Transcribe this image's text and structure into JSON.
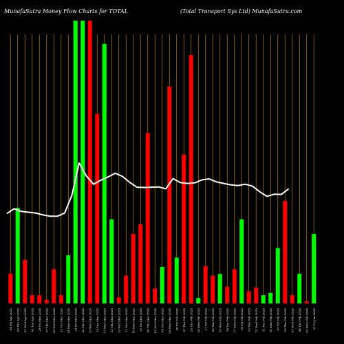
{
  "header": {
    "left_title": "MunafaSutra  Money Flow  Charts for TOTAL",
    "right_title": "(Total Transport Sys Ltd) MunafaSutra.com"
  },
  "colors": {
    "background": "#000000",
    "gridline": "#b8860b",
    "up": "#00ff00",
    "down": "#ff0000",
    "line": "#ffffff",
    "text": "#ffffff"
  },
  "chart_data": {
    "type": "bar",
    "title": "MunafaSutra  Money Flow  Charts for TOTAL",
    "subtitle": "(Total Transport Sys Ltd) MunafaSutra.com",
    "categories": [
      "04 Fri Apr 2025",
      "03 Thu Apr 2025",
      "02 Wed Apr 2025",
      "01 Tue Apr 2025",
      "28 Fri Mar 2025",
      "27 Thu Mar 2025",
      "26 Wed Mar 2025",
      "25 Tue Mar 2025",
      "24 Mon Mar 2025",
      "21 Fri Mar 2025",
      "20 Thu Mar 2025",
      "19 Wed Mar 2025",
      "18 Tue Mar 2025",
      "17 Mon Mar 2025",
      "13 Thu Mar 2025",
      "12 Wed Mar 2025",
      "11 Tue Mar 2025",
      "10 Mon Mar 2025",
      "07 Fri Mar 2025",
      "06 Thu Mar 2025",
      "05 Wed Mar 2025",
      "04 Tue Mar 2025",
      "03 Mon Mar 2025",
      "28 Fri Feb 2025",
      "27 Thu Feb 2025",
      "25 Tue Feb 2025",
      "24 Mon Feb 2025",
      "21 Fri Feb 2025",
      "20 Thu Feb 2025",
      "19 Wed Feb 2025",
      "18 Tue Feb 2025",
      "17 Mon Feb 2025",
      "14 Fri Feb 2025",
      "13 Thu Feb 2025",
      "12 Wed Feb 2025",
      "11 Tue Feb 2025",
      "10 Mon Feb 2025",
      "07 Fri Feb 2025",
      "06 Thu Feb 2025",
      "05 Wed Feb 2025",
      "04 Tue Feb 2025",
      "03 Mon Feb 2025",
      "31 Fri Jan 2025"
    ],
    "tick_labels": [
      "04 Fri Apr 2025",
      "03 Thu Apr 2025",
      "02 Wed Apr 2025",
      "01 Tue Apr 2025",
      "28 Fri Mar 2025",
      "27 Thu Mar 2025",
      "26 Wed Mar 2025",
      "25 Tue Mar 2025",
      "24 Mon Mar 2025",
      "21 Fri Mar 2025",
      "20 Thu Mar 2025",
      "19 Wed Mar 2025",
      "18 Tue Mar 2025",
      "17 Mon Mar 2025",
      "13 Thu Mar 2025",
      "12 Wed Mar 2025",
      "11 Tue Mar 2025",
      "10 Mon Mar 2025",
      "07 Fri Mar 2025",
      "06 Thu Mar 2025",
      "05 Wed Mar 2025",
      "04 Tue Mar 2025",
      "03 Mon Mar 2025",
      "28 Fri Feb 2025",
      "27 Thu Feb 2025",
      "25 Tue Feb 2025",
      "24 Mon Feb 2025",
      "21 Fri Feb 2025",
      "20 Thu Feb 2025",
      "19 Wed Feb 2025",
      "18 Tue Feb 2025",
      "17 Mon Feb 2025",
      "14 Fri Feb 2025",
      "13 Thu Feb 2025",
      "12 Wed Feb 2025",
      "11 Tue Feb 2025",
      "10 Mon Feb 2025",
      "07 Fri Feb 2025",
      "06 Thu Feb 2025",
      "05 Wed Feb 2025",
      "04 Tue Feb 2025",
      "03 Mon Feb 2025",
      "31 Fri Jan 2025"
    ],
    "bar_colors": [
      "red",
      "green",
      "red",
      "red",
      "red",
      "red",
      "red",
      "red",
      "green",
      "green",
      "green",
      "red",
      "red",
      "green",
      "green",
      "red",
      "red",
      "red",
      "red",
      "red",
      "red",
      "green",
      "red",
      "green",
      "red",
      "red",
      "green",
      "red",
      "red",
      "green",
      "red",
      "red",
      "green",
      "red",
      "red",
      "green",
      "green",
      "green",
      "red",
      "red",
      "green",
      "red",
      "green"
    ],
    "bar_heights": [
      10.5,
      33.8,
      15.4,
      2.9,
      2.9,
      1.3,
      12.1,
      2.9,
      17.0,
      100,
      100,
      100,
      67.0,
      91.8,
      29.7,
      2.1,
      9.8,
      24.6,
      28.0,
      60.3,
      5.3,
      12.9,
      76.7,
      16.2,
      52.6,
      87.8,
      1.9,
      13.2,
      9.8,
      10.4,
      5.9,
      12.1,
      29.7,
      4.3,
      5.6,
      2.9,
      3.7,
      19.6,
      36.3,
      2.9,
      10.5,
      0.8,
      24.6
    ],
    "line": [
      33.4,
      35.2,
      34.2,
      33.9,
      33.6,
      32.9,
      32.4,
      32.4,
      33.6,
      40.2,
      52.2,
      47.4,
      44.3,
      45.8,
      47.0,
      48.4,
      47.2,
      45.0,
      43.2,
      43.1,
      43.2,
      43.3,
      42.6,
      46.4,
      44.9,
      44.6,
      44.8,
      45.9,
      46.3,
      45.2,
      44.6,
      44.1,
      43.8,
      44.3,
      43.6,
      41.5,
      39.8,
      40.6,
      40.5,
      42.6
    ],
    "ylim": [
      0,
      100
    ],
    "grid": true
  }
}
